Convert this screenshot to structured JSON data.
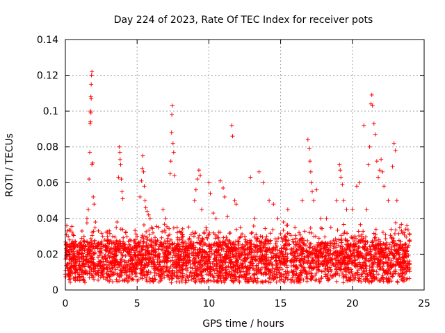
{
  "chart_data": {
    "type": "scatter",
    "title": "Day 224 of 2023, Rate Of TEC Index for receiver pots",
    "xlabel": "GPS time / hours",
    "ylabel": "ROTI / TECUs",
    "xlim": [
      0,
      25
    ],
    "ylim": [
      0,
      0.14
    ],
    "xticks": [
      "0",
      "5",
      "10",
      "15",
      "20",
      "25"
    ],
    "yticks": [
      "0",
      "0.02",
      "0.04",
      "0.06",
      "0.08",
      "0.1",
      "0.12",
      "0.14"
    ],
    "grid": true,
    "marker": "+",
    "color": "#ff0000",
    "series": [
      {
        "points": [
          [
            0.1,
            0.036
          ],
          [
            0.15,
            0.033
          ],
          [
            0.2,
            0.03
          ],
          [
            0.3,
            0.028
          ],
          [
            0.5,
            0.025
          ],
          [
            0.7,
            0.027
          ],
          [
            1.0,
            0.026
          ],
          [
            1.3,
            0.03
          ],
          [
            1.5,
            0.04
          ],
          [
            1.6,
            0.045
          ],
          [
            1.65,
            0.062
          ],
          [
            1.7,
            0.077
          ],
          [
            1.72,
            0.093
          ],
          [
            1.75,
            0.1
          ],
          [
            1.78,
            0.108
          ],
          [
            1.8,
            0.115
          ],
          [
            1.82,
            0.12
          ],
          [
            1.85,
            0.122
          ],
          [
            1.8,
            0.107
          ],
          [
            1.78,
            0.099
          ],
          [
            1.75,
            0.094
          ],
          [
            1.85,
            0.07
          ],
          [
            1.9,
            0.071
          ],
          [
            1.95,
            0.052
          ],
          [
            2.0,
            0.048
          ],
          [
            2.1,
            0.038
          ],
          [
            2.3,
            0.033
          ],
          [
            2.6,
            0.03
          ],
          [
            3.0,
            0.028
          ],
          [
            3.3,
            0.03
          ],
          [
            3.6,
            0.038
          ],
          [
            3.7,
            0.063
          ],
          [
            3.75,
            0.08
          ],
          [
            3.8,
            0.077
          ],
          [
            3.82,
            0.073
          ],
          [
            3.85,
            0.07
          ],
          [
            3.9,
            0.062
          ],
          [
            3.95,
            0.055
          ],
          [
            4.0,
            0.051
          ],
          [
            4.2,
            0.032
          ],
          [
            4.5,
            0.028
          ],
          [
            5.0,
            0.03
          ],
          [
            5.2,
            0.052
          ],
          [
            5.3,
            0.061
          ],
          [
            5.35,
            0.068
          ],
          [
            5.4,
            0.075
          ],
          [
            5.45,
            0.066
          ],
          [
            5.5,
            0.058
          ],
          [
            5.55,
            0.05
          ],
          [
            5.6,
            0.046
          ],
          [
            5.7,
            0.044
          ],
          [
            5.8,
            0.042
          ],
          [
            5.9,
            0.04
          ],
          [
            6.0,
            0.035
          ],
          [
            6.5,
            0.035
          ],
          [
            6.8,
            0.045
          ],
          [
            7.0,
            0.04
          ],
          [
            7.3,
            0.065
          ],
          [
            7.35,
            0.072
          ],
          [
            7.4,
            0.088
          ],
          [
            7.42,
            0.098
          ],
          [
            7.45,
            0.103
          ],
          [
            7.5,
            0.082
          ],
          [
            7.55,
            0.077
          ],
          [
            7.6,
            0.064
          ],
          [
            7.8,
            0.032
          ],
          [
            8.2,
            0.03
          ],
          [
            8.6,
            0.028
          ],
          [
            9.0,
            0.05
          ],
          [
            9.1,
            0.056
          ],
          [
            9.2,
            0.062
          ],
          [
            9.3,
            0.067
          ],
          [
            9.4,
            0.064
          ],
          [
            9.5,
            0.045
          ],
          [
            9.8,
            0.035
          ],
          [
            10.0,
            0.06
          ],
          [
            10.1,
            0.054
          ],
          [
            10.3,
            0.043
          ],
          [
            10.5,
            0.04
          ],
          [
            10.8,
            0.061
          ],
          [
            11.0,
            0.057
          ],
          [
            11.1,
            0.052
          ],
          [
            11.3,
            0.041
          ],
          [
            11.6,
            0.092
          ],
          [
            11.65,
            0.086
          ],
          [
            11.8,
            0.05
          ],
          [
            11.9,
            0.048
          ],
          [
            12.2,
            0.035
          ],
          [
            12.5,
            0.03
          ],
          [
            12.9,
            0.063
          ],
          [
            13.2,
            0.04
          ],
          [
            13.5,
            0.066
          ],
          [
            13.8,
            0.06
          ],
          [
            14.2,
            0.05
          ],
          [
            14.5,
            0.048
          ],
          [
            14.8,
            0.04
          ],
          [
            15.2,
            0.038
          ],
          [
            15.5,
            0.045
          ],
          [
            16.0,
            0.035
          ],
          [
            16.5,
            0.05
          ],
          [
            16.9,
            0.084
          ],
          [
            17.0,
            0.079
          ],
          [
            17.05,
            0.072
          ],
          [
            17.1,
            0.066
          ],
          [
            17.15,
            0.06
          ],
          [
            17.2,
            0.055
          ],
          [
            17.3,
            0.05
          ],
          [
            17.5,
            0.056
          ],
          [
            17.8,
            0.04
          ],
          [
            18.2,
            0.04
          ],
          [
            18.5,
            0.035
          ],
          [
            18.9,
            0.05
          ],
          [
            19.1,
            0.07
          ],
          [
            19.15,
            0.067
          ],
          [
            19.2,
            0.063
          ],
          [
            19.3,
            0.059
          ],
          [
            19.4,
            0.05
          ],
          [
            19.6,
            0.045
          ],
          [
            20.0,
            0.045
          ],
          [
            20.3,
            0.058
          ],
          [
            20.5,
            0.06
          ],
          [
            20.8,
            0.092
          ],
          [
            21.0,
            0.045
          ],
          [
            21.1,
            0.07
          ],
          [
            21.2,
            0.08
          ],
          [
            21.3,
            0.104
          ],
          [
            21.35,
            0.109
          ],
          [
            21.4,
            0.103
          ],
          [
            21.5,
            0.093
          ],
          [
            21.6,
            0.087
          ],
          [
            21.7,
            0.072
          ],
          [
            21.8,
            0.063
          ],
          [
            21.9,
            0.067
          ],
          [
            22.0,
            0.073
          ],
          [
            22.1,
            0.066
          ],
          [
            22.2,
            0.058
          ],
          [
            22.5,
            0.05
          ],
          [
            22.8,
            0.069
          ],
          [
            22.9,
            0.082
          ],
          [
            23.0,
            0.078
          ],
          [
            23.1,
            0.05
          ],
          [
            23.3,
            0.035
          ],
          [
            23.6,
            0.032
          ],
          [
            23.8,
            0.036
          ]
        ]
      }
    ]
  }
}
